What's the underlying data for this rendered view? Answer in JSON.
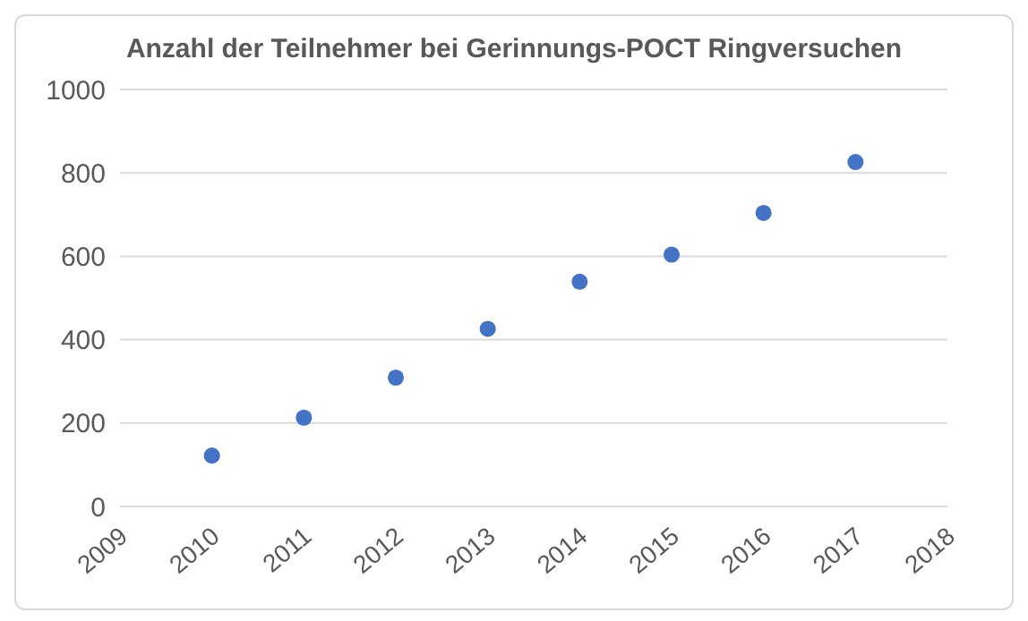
{
  "chart_data": {
    "type": "scatter",
    "title": "Anzahl der Teilnehmer bei Gerinnungs-POCT Ringversuchen",
    "x": [
      2010,
      2011,
      2012,
      2013,
      2014,
      2015,
      2016,
      2017
    ],
    "series": [
      {
        "color": "#4472c4",
        "values": [
          122,
          213,
          309,
          426,
          539,
          604,
          704,
          826
        ]
      }
    ],
    "xlim": [
      2009,
      2018
    ],
    "xticks": [
      2009,
      2010,
      2011,
      2012,
      2013,
      2014,
      2015,
      2016,
      2017,
      2018
    ],
    "ylim": [
      0,
      1000
    ],
    "yticks": [
      0,
      200,
      400,
      600,
      800,
      1000
    ],
    "grid": "y",
    "marker": "circle",
    "legend": false
  }
}
